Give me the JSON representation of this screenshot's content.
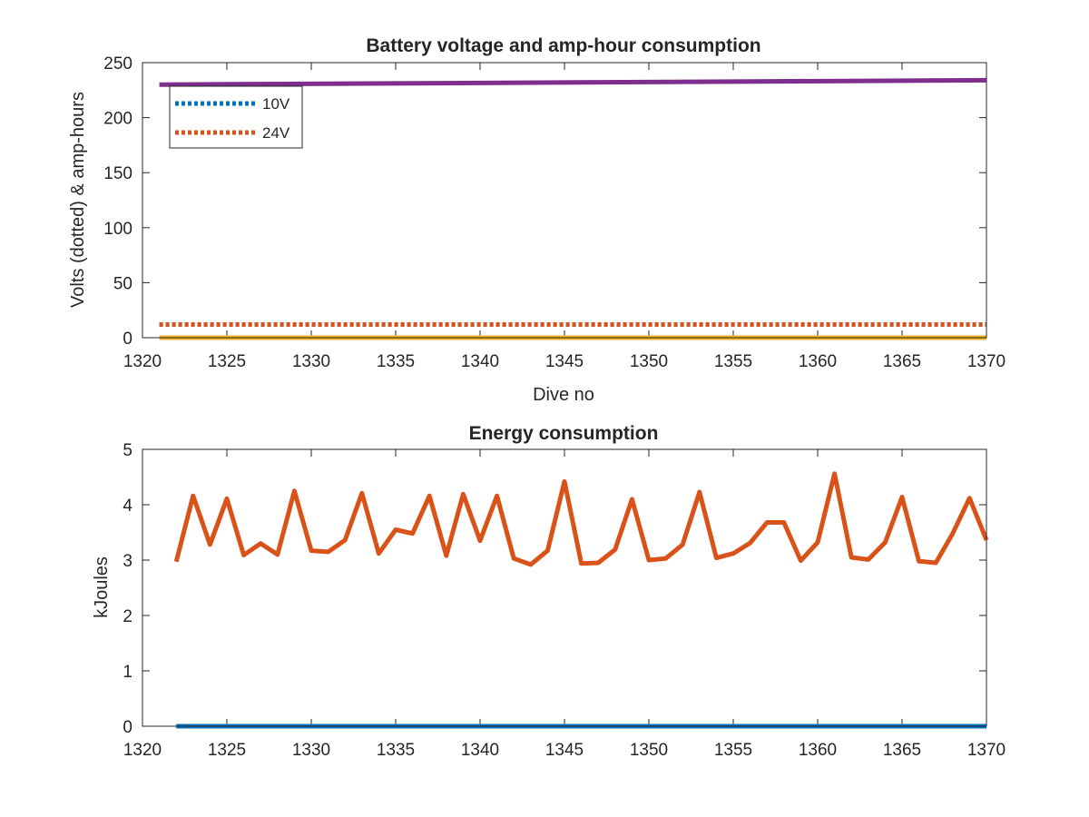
{
  "colors": {
    "blue": "#0072BD",
    "orange": "#D95319",
    "yellow": "#EDB120",
    "purple": "#7E2F8E",
    "axis": "#262626"
  },
  "chart_data": [
    {
      "type": "line",
      "title": "Battery voltage and amp-hour consumption",
      "xlabel": "Dive no",
      "ylabel": "Volts (dotted) & amp-hours",
      "xlim": [
        1320,
        1370
      ],
      "ylim": [
        0,
        250
      ],
      "xticks": [
        1320,
        1325,
        1330,
        1335,
        1340,
        1345,
        1350,
        1355,
        1360,
        1365,
        1370
      ],
      "yticks": [
        0,
        50,
        100,
        150,
        200,
        250
      ],
      "grid": false,
      "legend": {
        "placement": "top-left",
        "entries": [
          "10V",
          "24V"
        ]
      },
      "series": [
        {
          "name": "10V",
          "style": "dotted",
          "color": "#0072BD",
          "x": [
            1321,
            1370
          ],
          "y": [
            12,
            12
          ]
        },
        {
          "name": "24V",
          "style": "dotted",
          "color": "#D95319",
          "x": [
            1321,
            1370
          ],
          "y": [
            12,
            12
          ]
        },
        {
          "style": "solid",
          "color": "#EDB120",
          "x": [
            1321,
            1370
          ],
          "y": [
            0,
            0
          ]
        },
        {
          "style": "solid",
          "color": "#7E2F8E",
          "x": [
            1321,
            1370
          ],
          "y": [
            230,
            234
          ]
        }
      ]
    },
    {
      "type": "line",
      "title": "Energy consumption",
      "xlabel": "",
      "ylabel": "kJoules",
      "xlim": [
        1320,
        1370
      ],
      "ylim": [
        0,
        5
      ],
      "xticks": [
        1320,
        1325,
        1330,
        1335,
        1340,
        1345,
        1350,
        1355,
        1360,
        1365,
        1370
      ],
      "yticks": [
        0,
        1,
        2,
        3,
        4,
        5
      ],
      "grid": false,
      "series": [
        {
          "style": "solid",
          "color": "#D95319",
          "x": [
            1322,
            1323,
            1324,
            1325,
            1326,
            1327,
            1328,
            1329,
            1330,
            1331,
            1332,
            1333,
            1334,
            1335,
            1336,
            1337,
            1338,
            1339,
            1340,
            1341,
            1342,
            1343,
            1344,
            1345,
            1346,
            1347,
            1348,
            1349,
            1350,
            1351,
            1352,
            1353,
            1354,
            1355,
            1356,
            1357,
            1358,
            1359,
            1360,
            1361,
            1362,
            1363,
            1364,
            1365,
            1366,
            1367,
            1368,
            1369,
            1370
          ],
          "y": [
            2.97,
            4.16,
            3.28,
            4.11,
            3.09,
            3.3,
            3.1,
            4.25,
            3.17,
            3.15,
            3.36,
            4.21,
            3.12,
            3.55,
            3.48,
            4.16,
            3.08,
            4.19,
            3.35,
            4.16,
            3.03,
            2.92,
            3.17,
            4.42,
            2.94,
            2.95,
            3.19,
            4.1,
            3.0,
            3.03,
            3.28,
            4.23,
            3.04,
            3.12,
            3.31,
            3.68,
            3.68,
            2.99,
            3.32,
            4.56,
            3.05,
            3.01,
            3.32,
            4.14,
            2.98,
            2.95,
            3.48,
            4.12,
            3.36
          ]
        },
        {
          "style": "solid",
          "color": "#0072BD",
          "x": [
            1322,
            1370
          ],
          "y": [
            0,
            0
          ]
        }
      ]
    }
  ]
}
